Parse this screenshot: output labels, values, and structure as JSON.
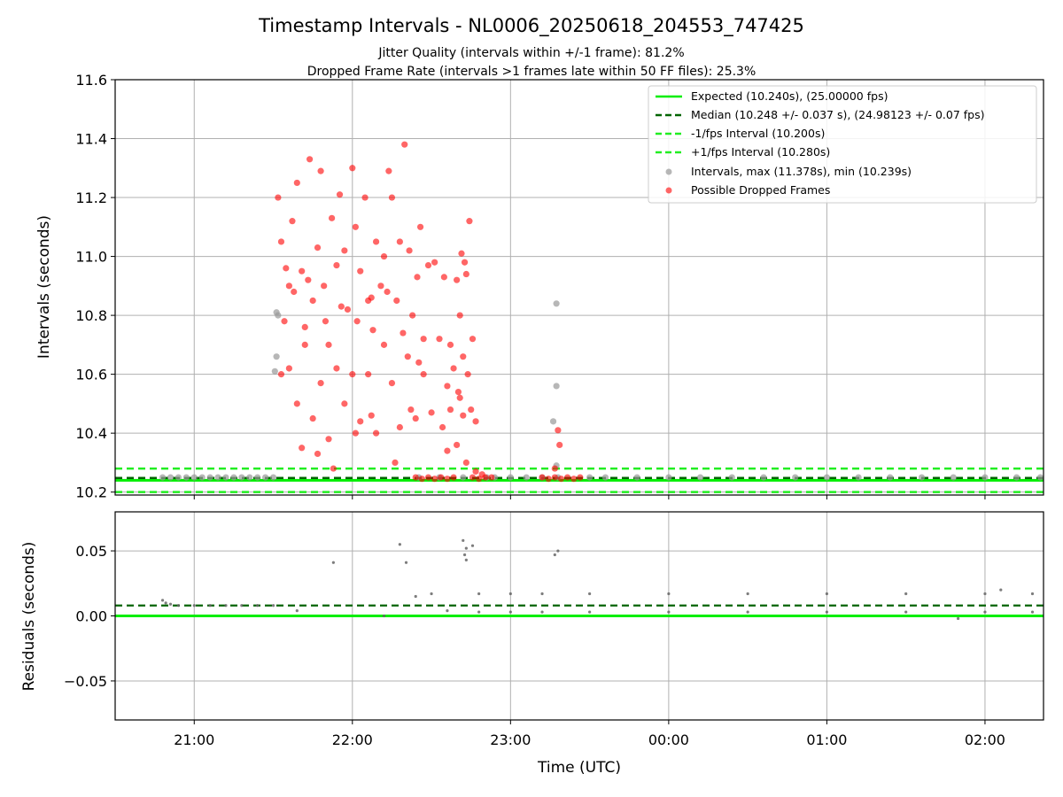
{
  "chart_data": {
    "type": "scatter",
    "title": "Timestamp Intervals - NL0006_20250618_204553_747425",
    "subtitle_lines": [
      "Jitter Quality (intervals within +/-1 frame): 81.2%",
      "Dropped Frame Rate (intervals >1 frames late within 50 FF files): 25.3%"
    ],
    "xlabel": "Time (UTC)",
    "x_tick_labels": [
      "21:00",
      "22:00",
      "23:00",
      "00:00",
      "01:00",
      "02:00"
    ],
    "x_ticks_hours": [
      21,
      22,
      23,
      24,
      25,
      26
    ],
    "xlim_hours": [
      20.5,
      26.37
    ],
    "top_panel": {
      "ylabel": "Intervals (seconds)",
      "ylim": [
        10.19,
        11.6
      ],
      "y_ticks": [
        10.2,
        10.4,
        10.6,
        10.8,
        11.0,
        11.2,
        11.4,
        11.6
      ],
      "y_tick_labels": [
        "10.2",
        "10.4",
        "10.6",
        "10.8",
        "11.0",
        "11.2",
        "11.4",
        "11.6"
      ],
      "grid": true,
      "legend_position": "top-right",
      "expected": 10.24,
      "median": 10.248,
      "minus_interval": 10.2,
      "plus_interval": 10.28,
      "legend": [
        "Expected (10.240s), (25.00000 fps)",
        "Median (10.248 +/- 0.037 s), (24.98123 +/- 0.07 fps)",
        "-1/fps Interval (10.200s)",
        "+1/fps Interval (10.280s)",
        "Intervals, max (11.378s), min (10.239s)",
        "Possible Dropped Frames"
      ],
      "series": [
        {
          "kind": "intervals",
          "color": "#999999",
          "points": [
            [
              20.8,
              10.25
            ],
            [
              20.85,
              10.25
            ],
            [
              20.9,
              10.25
            ],
            [
              20.95,
              10.25
            ],
            [
              21.0,
              10.25
            ],
            [
              21.05,
              10.25
            ],
            [
              21.1,
              10.25
            ],
            [
              21.15,
              10.25
            ],
            [
              21.2,
              10.25
            ],
            [
              21.25,
              10.25
            ],
            [
              21.3,
              10.25
            ],
            [
              21.35,
              10.25
            ],
            [
              21.4,
              10.25
            ],
            [
              21.45,
              10.25
            ],
            [
              21.5,
              10.25
            ],
            [
              21.52,
              10.81
            ],
            [
              21.53,
              10.8
            ],
            [
              21.51,
              10.61
            ],
            [
              21.52,
              10.66
            ],
            [
              22.42,
              10.25
            ],
            [
              22.55,
              10.25
            ],
            [
              22.7,
              10.25
            ],
            [
              22.85,
              10.25
            ],
            [
              22.9,
              10.25
            ],
            [
              23.0,
              10.25
            ],
            [
              23.1,
              10.25
            ],
            [
              23.2,
              10.25
            ],
            [
              23.3,
              10.25
            ],
            [
              23.5,
              10.25
            ],
            [
              23.6,
              10.25
            ],
            [
              23.8,
              10.25
            ],
            [
              24.0,
              10.25
            ],
            [
              24.2,
              10.25
            ],
            [
              24.4,
              10.25
            ],
            [
              24.6,
              10.25
            ],
            [
              24.8,
              10.25
            ],
            [
              25.0,
              10.25
            ],
            [
              25.2,
              10.25
            ],
            [
              25.4,
              10.25
            ],
            [
              25.6,
              10.25
            ],
            [
              25.8,
              10.25
            ],
            [
              26.0,
              10.25
            ],
            [
              26.2,
              10.25
            ],
            [
              26.35,
              10.25
            ],
            [
              23.29,
              10.84
            ],
            [
              23.29,
              10.56
            ],
            [
              23.27,
              10.44
            ],
            [
              23.29,
              10.29
            ]
          ]
        },
        {
          "kind": "dropped",
          "color": "#ff0000",
          "points": [
            [
              21.53,
              11.2
            ],
            [
              21.55,
              11.05
            ],
            [
              21.58,
              10.96
            ],
            [
              21.6,
              10.9
            ],
            [
              21.62,
              11.12
            ],
            [
              21.65,
              11.25
            ],
            [
              21.68,
              10.95
            ],
            [
              21.7,
              10.76
            ],
            [
              21.73,
              11.33
            ],
            [
              21.75,
              10.85
            ],
            [
              21.78,
              11.03
            ],
            [
              21.8,
              11.29
            ],
            [
              21.82,
              10.9
            ],
            [
              21.85,
              10.7
            ],
            [
              21.87,
              11.13
            ],
            [
              21.9,
              10.97
            ],
            [
              21.92,
              11.21
            ],
            [
              21.95,
              11.02
            ],
            [
              21.97,
              10.82
            ],
            [
              22.0,
              11.3
            ],
            [
              22.02,
              11.1
            ],
            [
              22.05,
              10.95
            ],
            [
              22.08,
              11.2
            ],
            [
              22.1,
              10.85
            ],
            [
              22.13,
              10.75
            ],
            [
              22.15,
              11.05
            ],
            [
              22.18,
              10.9
            ],
            [
              22.2,
              11.0
            ],
            [
              22.23,
              11.29
            ],
            [
              22.25,
              11.2
            ],
            [
              22.28,
              10.85
            ],
            [
              22.3,
              11.05
            ],
            [
              22.33,
              11.38
            ],
            [
              22.36,
              11.02
            ],
            [
              22.38,
              10.8
            ],
            [
              22.41,
              10.93
            ],
            [
              22.43,
              11.1
            ],
            [
              22.45,
              10.72
            ],
            [
              22.48,
              10.97
            ],
            [
              22.52,
              10.98
            ],
            [
              21.55,
              10.6
            ],
            [
              21.6,
              10.62
            ],
            [
              21.65,
              10.5
            ],
            [
              21.7,
              10.7
            ],
            [
              21.75,
              10.45
            ],
            [
              21.8,
              10.57
            ],
            [
              21.85,
              10.38
            ],
            [
              21.9,
              10.62
            ],
            [
              21.95,
              10.5
            ],
            [
              22.0,
              10.6
            ],
            [
              22.05,
              10.44
            ],
            [
              22.1,
              10.6
            ],
            [
              22.15,
              10.4
            ],
            [
              22.2,
              10.7
            ],
            [
              22.25,
              10.57
            ],
            [
              22.3,
              10.42
            ],
            [
              22.35,
              10.66
            ],
            [
              22.4,
              10.45
            ],
            [
              22.45,
              10.6
            ],
            [
              22.5,
              10.47
            ],
            [
              21.57,
              10.78
            ],
            [
              21.63,
              10.88
            ],
            [
              21.72,
              10.92
            ],
            [
              21.83,
              10.78
            ],
            [
              21.93,
              10.83
            ],
            [
              22.03,
              10.78
            ],
            [
              22.12,
              10.86
            ],
            [
              22.22,
              10.88
            ],
            [
              22.32,
              10.74
            ],
            [
              22.42,
              10.64
            ],
            [
              21.68,
              10.35
            ],
            [
              21.78,
              10.33
            ],
            [
              21.88,
              10.28
            ],
            [
              22.02,
              10.4
            ],
            [
              22.12,
              10.46
            ],
            [
              22.27,
              10.3
            ],
            [
              22.37,
              10.48
            ],
            [
              22.58,
              10.93
            ],
            [
              22.62,
              10.7
            ],
            [
              22.66,
              10.92
            ],
            [
              22.68,
              10.8
            ],
            [
              22.7,
              10.66
            ],
            [
              22.72,
              10.94
            ],
            [
              22.73,
              10.6
            ],
            [
              22.74,
              11.12
            ],
            [
              22.76,
              10.72
            ],
            [
              22.78,
              10.44
            ],
            [
              22.62,
              10.48
            ],
            [
              22.66,
              10.36
            ],
            [
              22.7,
              10.46
            ],
            [
              22.72,
              10.3
            ],
            [
              22.57,
              10.42
            ],
            [
              22.6,
              10.56
            ],
            [
              22.64,
              10.62
            ],
            [
              22.68,
              10.52
            ],
            [
              22.71,
              10.98
            ],
            [
              22.69,
              11.01
            ],
            [
              22.55,
              10.72
            ],
            [
              22.6,
              10.34
            ],
            [
              22.67,
              10.54
            ],
            [
              22.75,
              10.48
            ],
            [
              22.4,
              10.25
            ],
            [
              22.44,
              10.245
            ],
            [
              22.48,
              10.25
            ],
            [
              22.52,
              10.245
            ],
            [
              22.56,
              10.25
            ],
            [
              22.6,
              10.245
            ],
            [
              22.64,
              10.25
            ],
            [
              22.76,
              10.25
            ],
            [
              22.8,
              10.245
            ],
            [
              22.84,
              10.25
            ],
            [
              22.88,
              10.25
            ],
            [
              22.78,
              10.27
            ],
            [
              22.82,
              10.26
            ],
            [
              23.2,
              10.25
            ],
            [
              23.24,
              10.245
            ],
            [
              23.28,
              10.25
            ],
            [
              23.32,
              10.245
            ],
            [
              23.36,
              10.25
            ],
            [
              23.4,
              10.245
            ],
            [
              23.44,
              10.25
            ],
            [
              23.3,
              10.41
            ],
            [
              23.31,
              10.36
            ],
            [
              23.28,
              10.28
            ]
          ]
        }
      ]
    },
    "bottom_panel": {
      "ylabel": "Residuals (seconds)",
      "ylim": [
        -0.08,
        0.08
      ],
      "y_ticks": [
        -0.05,
        0.0,
        0.05
      ],
      "y_tick_labels": [
        "−0.05",
        "0.00",
        "0.05"
      ],
      "grid": true,
      "expected": 0.0,
      "median": 0.008,
      "points": [
        [
          20.8,
          0.012
        ],
        [
          20.82,
          0.01
        ],
        [
          20.85,
          0.009
        ],
        [
          20.9,
          0.008
        ],
        [
          21.0,
          0.008
        ],
        [
          21.1,
          0.008
        ],
        [
          21.2,
          0.008
        ],
        [
          21.3,
          0.008
        ],
        [
          21.4,
          0.008
        ],
        [
          21.5,
          0.008
        ],
        [
          21.65,
          0.004
        ],
        [
          21.88,
          0.041
        ],
        [
          22.2,
          0.0
        ],
        [
          22.3,
          0.055
        ],
        [
          22.34,
          0.041
        ],
        [
          22.4,
          0.015
        ],
        [
          22.5,
          0.017
        ],
        [
          22.6,
          0.004
        ],
        [
          22.7,
          0.058
        ],
        [
          22.72,
          0.052
        ],
        [
          22.71,
          0.047
        ],
        [
          22.76,
          0.054
        ],
        [
          22.72,
          0.043
        ],
        [
          23.28,
          0.047
        ],
        [
          23.3,
          0.05
        ],
        [
          22.8,
          0.017
        ],
        [
          22.8,
          0.003
        ],
        [
          23.0,
          0.017
        ],
        [
          23.0,
          0.003
        ],
        [
          23.2,
          0.017
        ],
        [
          23.2,
          0.003
        ],
        [
          23.5,
          0.017
        ],
        [
          23.5,
          0.003
        ],
        [
          24.0,
          0.017
        ],
        [
          24.0,
          0.003
        ],
        [
          24.5,
          0.017
        ],
        [
          24.5,
          0.003
        ],
        [
          25.0,
          0.017
        ],
        [
          25.0,
          0.003
        ],
        [
          25.5,
          0.017
        ],
        [
          25.5,
          0.003
        ],
        [
          26.0,
          0.017
        ],
        [
          26.0,
          0.003
        ],
        [
          26.3,
          0.017
        ],
        [
          26.3,
          0.003
        ],
        [
          25.83,
          -0.002
        ],
        [
          26.1,
          0.02
        ]
      ]
    }
  }
}
